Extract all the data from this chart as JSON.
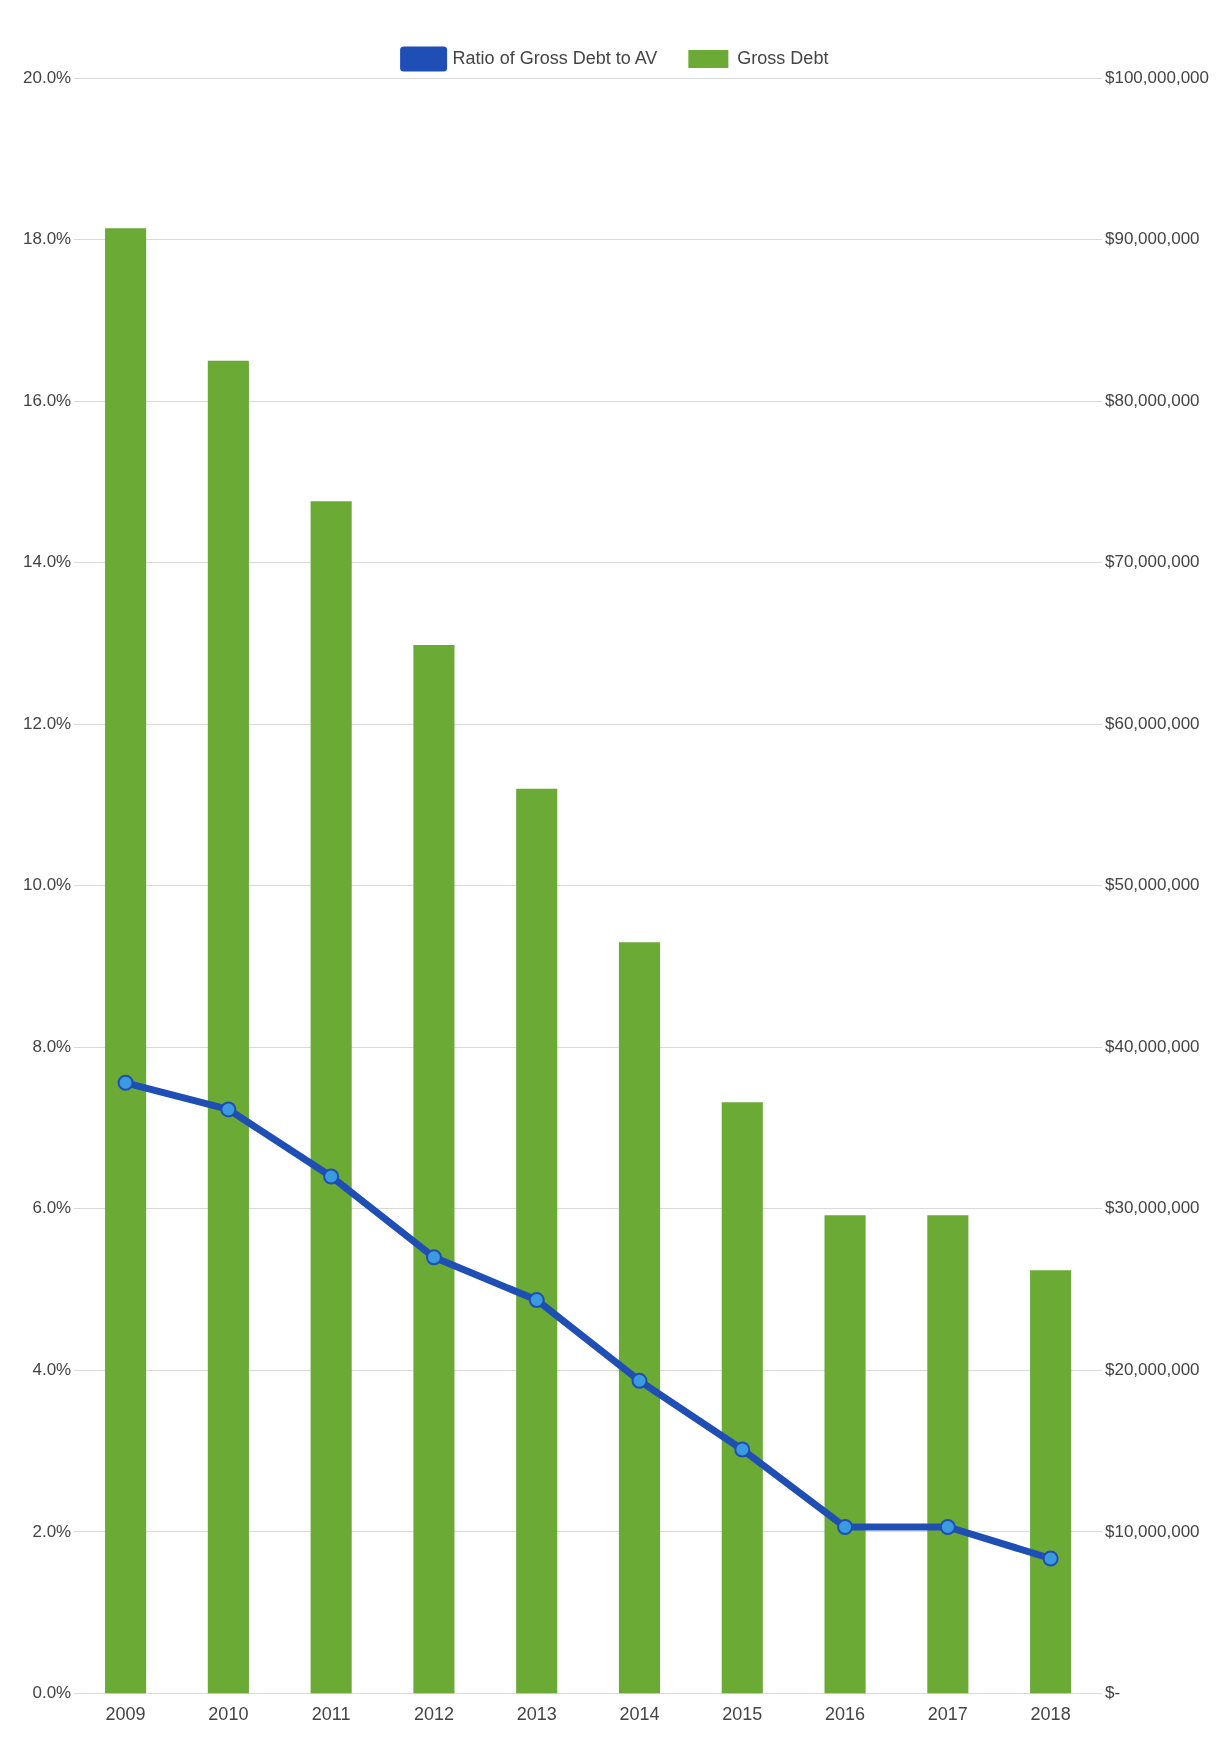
{
  "chart_data": {
    "type": "bar",
    "categories": [
      "2009",
      "2010",
      "2011",
      "2012",
      "2013",
      "2014",
      "2015",
      "2016",
      "2017",
      "2018"
    ],
    "series": [
      {
        "name": "Gross Debt",
        "type": "bar",
        "axis": "y2",
        "color": "#6aaa35",
        "values": [
          90700000,
          82500000,
          73800000,
          64900000,
          56000000,
          46500000,
          36600000,
          29600000,
          29600000,
          26200000
        ]
      },
      {
        "name": "Ratio of Gross Debt to AV",
        "type": "line",
        "axis": "y",
        "color": "#1f4fb5",
        "values": [
          7.56,
          7.23,
          6.4,
          5.4,
          4.87,
          3.87,
          3.02,
          2.06,
          2.06,
          1.67
        ]
      }
    ],
    "ylim": [
      0,
      20
    ],
    "yticks": [
      {
        "value": 0,
        "label": "0.0%"
      },
      {
        "value": 2,
        "label": "2.0%"
      },
      {
        "value": 4,
        "label": "4.0%"
      },
      {
        "value": 6,
        "label": "6.0%"
      },
      {
        "value": 8,
        "label": "8.0%"
      },
      {
        "value": 10,
        "label": "10.0%"
      },
      {
        "value": 12,
        "label": "12.0%"
      },
      {
        "value": 14,
        "label": "14.0%"
      },
      {
        "value": 16,
        "label": "16.0%"
      },
      {
        "value": 18,
        "label": "18.0%"
      },
      {
        "value": 20,
        "label": "20.0%"
      }
    ],
    "y2lim": [
      0,
      100000000
    ],
    "y2ticks": [
      {
        "value": 0,
        "label": "$-"
      },
      {
        "value": 10000000,
        "label": "$10,000,000"
      },
      {
        "value": 20000000,
        "label": "$20,000,000"
      },
      {
        "value": 30000000,
        "label": "$30,000,000"
      },
      {
        "value": 40000000,
        "label": "$40,000,000"
      },
      {
        "value": 50000000,
        "label": "$50,000,000"
      },
      {
        "value": 60000000,
        "label": "$60,000,000"
      },
      {
        "value": 70000000,
        "label": "$70,000,000"
      },
      {
        "value": 80000000,
        "label": "$80,000,000"
      },
      {
        "value": 90000000,
        "label": "$90,000,000"
      },
      {
        "value": 100000000,
        "label": "$100,000,000"
      }
    ],
    "grid": "y",
    "legend": "top",
    "marker": "circle",
    "line_style": "solid"
  }
}
